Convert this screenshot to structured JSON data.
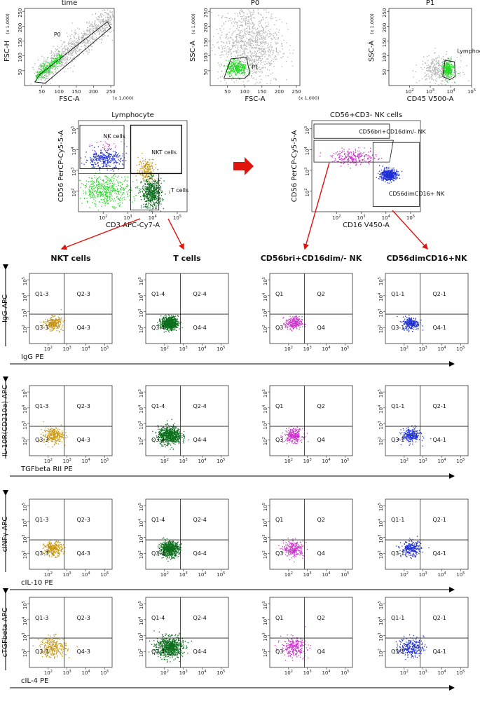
{
  "figure": {
    "arrow_color": "#e0140c",
    "axis_color": "#000000",
    "background": "#ffffff"
  },
  "chart_data": [
    {
      "id": "time",
      "type": "scatter",
      "title": "time",
      "xlabel": "FSC-A",
      "ylabel": "FSC-H",
      "xscale": "linear",
      "yscale": "linear",
      "xlim": [
        0,
        260000
      ],
      "ylim": [
        0,
        260000
      ],
      "xticks": [
        50,
        100,
        150,
        200,
        250
      ],
      "yticks": [
        50,
        100,
        150,
        200,
        250
      ],
      "xunit": "(x 1,000)",
      "yunit": "(x 1,000)",
      "gates": [
        {
          "name": "P0",
          "label_at": [
            85000,
            165000
          ]
        }
      ],
      "populations": [
        {
          "color": "#b3b3b3",
          "kind": "diag",
          "n": 900,
          "from": 40000,
          "to": 250000,
          "spread": 22000
        },
        {
          "color": "#22dd22",
          "kind": "diag",
          "n": 260,
          "from": 35000,
          "to": 105000,
          "spread": 9000
        }
      ]
    },
    {
      "id": "p0",
      "type": "scatter",
      "title": "P0",
      "xlabel": "FSC-A",
      "ylabel": "SSC-A",
      "xscale": "linear",
      "yscale": "linear",
      "xlim": [
        0,
        260000
      ],
      "ylim": [
        0,
        260000
      ],
      "xticks": [
        50,
        100,
        150,
        200,
        250
      ],
      "yticks": [
        50,
        100,
        150,
        200,
        250
      ],
      "xunit": "(x 1,000)",
      "yunit": "(x 1,000)",
      "gates": [
        {
          "name": "P1",
          "label_at": [
            120000,
            55000
          ]
        }
      ],
      "populations": [
        {
          "color": "#b3b3b3",
          "n": 1100,
          "cx": 112000,
          "cy": 140000,
          "sx": 45000,
          "sy": 70000
        },
        {
          "color": "#22dd22",
          "n": 300,
          "cx": 75000,
          "cy": 60000,
          "sx": 15000,
          "sy": 12000
        }
      ]
    },
    {
      "id": "p1",
      "type": "scatter",
      "title": "P1",
      "xlabel": "CD45 V500-A",
      "ylabel": "SSC-A",
      "xscale": "log",
      "yscale": "linear",
      "xlim": [
        10,
        100000
      ],
      "ylim": [
        0,
        260000
      ],
      "xticks": [
        "10^2",
        "10^3",
        "10^4",
        "10^5"
      ],
      "yticks": [
        50,
        100,
        150,
        200,
        250
      ],
      "yunit": "(x 1,000)",
      "gates": [
        {
          "name": "Lymphocyte",
          "label_at": [
            60000,
            110000
          ]
        }
      ],
      "populations": [
        {
          "color": "#b3b3b3",
          "n": 350,
          "lcx": 3.4,
          "cy": 55000,
          "lsx": 0.45,
          "sy": 22000
        },
        {
          "color": "#22dd22",
          "n": 260,
          "lcx": 3.85,
          "cy": 55000,
          "lsx": 0.12,
          "sy": 14000
        }
      ]
    },
    {
      "id": "lymphocyte",
      "type": "scatter",
      "title": "Lymphocyte",
      "xlabel": "CD3 APC-Cy7-A",
      "ylabel": "CD56 PerCP-Cy5-5-A",
      "xscale": "log",
      "yscale": "log",
      "xlim": [
        10,
        250000
      ],
      "ylim": [
        10,
        250000
      ],
      "xticks": [
        "10^2",
        "10^3",
        "10^4",
        "10^5"
      ],
      "yticks": [
        "10^2",
        "10^3",
        "10^4",
        "10^5"
      ],
      "gates": [
        {
          "name": "NK cells",
          "label_at": [
            100,
            35000
          ]
        },
        {
          "name": "NKT cells",
          "label_at": [
            9000,
            6000
          ]
        },
        {
          "name": "T cells",
          "label_at": [
            55000,
            90
          ]
        }
      ],
      "populations": [
        {
          "color": "#22dd22",
          "n": 460,
          "lcx": 2.1,
          "lcy": 2.05,
          "lsx": 0.5,
          "lsy": 0.35
        },
        {
          "color": "#1f2fd6",
          "n": 300,
          "lcx": 2.0,
          "lcy": 3.55,
          "lsx": 0.38,
          "lsy": 0.22
        },
        {
          "color": "#cc44cc",
          "n": 30,
          "lcx": 2.2,
          "lcy": 4.2,
          "lsx": 0.35,
          "lsy": 0.15
        },
        {
          "color": "#c8960f",
          "n": 180,
          "lcx": 3.75,
          "lcy": 3.05,
          "lsx": 0.17,
          "lsy": 0.28
        },
        {
          "color": "#0b6e1c",
          "n": 550,
          "lcx": 3.95,
          "lcy": 1.9,
          "lsx": 0.2,
          "lsy": 0.35
        }
      ]
    },
    {
      "id": "nk",
      "type": "scatter",
      "title": "CD56+CD3- NK cells",
      "xlabel": "CD16 V450-A",
      "ylabel": "CD56 PerCP-Cy5-5-A",
      "xscale": "log",
      "yscale": "log",
      "xlim": [
        10,
        250000
      ],
      "ylim": [
        10,
        250000
      ],
      "xticks": [
        "10^2",
        "10^3",
        "10^4",
        "10^5"
      ],
      "yticks": [
        "10^2",
        "10^3",
        "10^4",
        "10^5"
      ],
      "gates": [
        {
          "name": "CD56bri+CD16dim/- NK",
          "label_at": [
            800,
            60000
          ]
        },
        {
          "name": "CD56dimCD16+ NK",
          "label_at": [
            13000,
            60
          ]
        }
      ],
      "populations": [
        {
          "color": "#cc33cc",
          "n": 230,
          "lcx": 2.7,
          "lcy": 3.65,
          "lsx": 0.45,
          "lsy": 0.18
        },
        {
          "color": "#1f2fd6",
          "n": 480,
          "lcx": 4.1,
          "lcy": 2.8,
          "lsx": 0.16,
          "lsy": 0.14
        }
      ]
    }
  ],
  "quadrant_grid": {
    "columns": [
      {
        "title": "NKT cells",
        "color": "#c8960f",
        "quadrants": [
          "Q1-3",
          "Q2-3",
          "Q3-3",
          "Q4-3"
        ]
      },
      {
        "title": "T cells",
        "color": "#0b6e1c",
        "quadrants": [
          "Q1-4",
          "Q2-4",
          "Q3-4",
          "Q4-4"
        ]
      },
      {
        "title": "CD56bri+CD16dim/- NK",
        "color": "#cc33cc",
        "quadrants": [
          "Q1",
          "Q2",
          "Q3",
          "Q4"
        ]
      },
      {
        "title": "CD56dimCD16+NK",
        "color": "#1f2fd6",
        "quadrants": [
          "Q1-1",
          "Q2-1",
          "Q3-1",
          "Q4-1"
        ]
      }
    ],
    "rows": [
      {
        "ylabel": "IgG APC",
        "xlabel": "IgG PE",
        "spread": [
          1,
          1,
          1
        ]
      },
      {
        "ylabel": "IL-10R(CD210a) APC",
        "xlabel": "TGFbeta RII PE",
        "spread": [
          1.2,
          1.4,
          1.1
        ]
      },
      {
        "ylabel": "cINFγ APC",
        "xlabel": "cIL-10 PE",
        "spread": [
          1.1,
          1.15,
          1.2
        ]
      },
      {
        "ylabel": "cTGFbeta APC",
        "xlabel": "cIL-4 PE",
        "spread": [
          1.6,
          1.6,
          1.5
        ]
      }
    ],
    "axis_ticks": [
      "10^2",
      "10^3",
      "10^4",
      "10^5"
    ],
    "xlim": [
      10,
      250000
    ],
    "ylim": [
      10,
      250000
    ],
    "quadrant_split": [
      700,
      700
    ]
  }
}
